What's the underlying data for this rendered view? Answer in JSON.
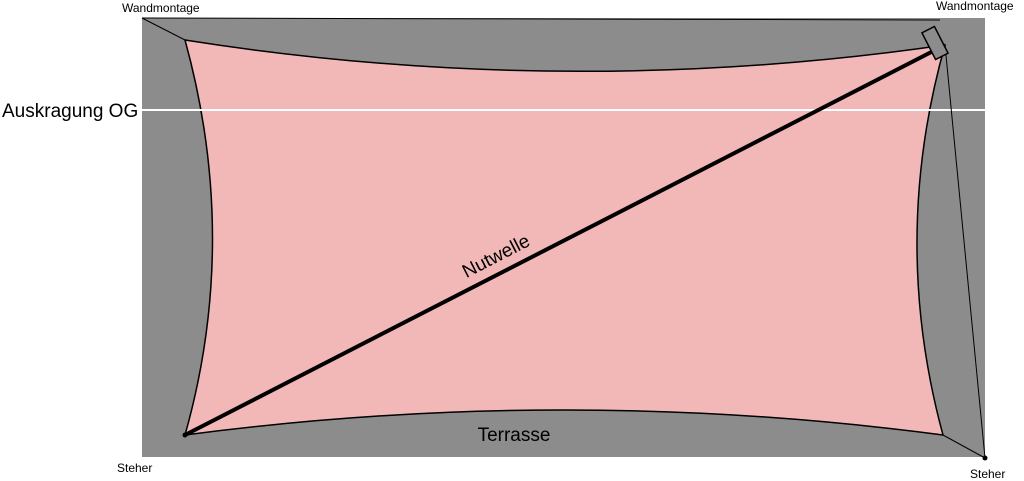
{
  "labels": {
    "wall_mount_left": "Wandmontage",
    "wall_mount_right": "Wandmontage",
    "overhang": "Auskragung OG",
    "diagonal": "Nutwelle",
    "terrace": "Terrasse",
    "post_left": "Steher",
    "post_right": "Steher"
  }
}
